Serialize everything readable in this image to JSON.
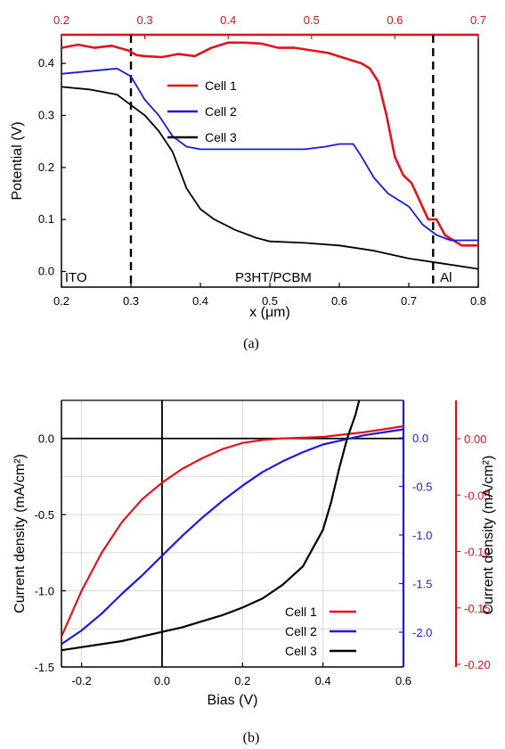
{
  "chart_data": [
    {
      "type": "line",
      "panel_label": "(a)",
      "xlabel": "x (μm)",
      "ylabel": "Potential (V)",
      "xlim": [
        0.2,
        0.8
      ],
      "ylim": [
        -0.03,
        0.455
      ],
      "x_ticks": [
        "0.2",
        "0.3",
        "0.4",
        "0.5",
        "0.6",
        "0.7",
        "0.8"
      ],
      "y_ticks": [
        "0.0",
        "0.1",
        "0.2",
        "0.3",
        "0.4"
      ],
      "top_axis": {
        "color": "#d8141b",
        "xlim": [
          0.2,
          0.7
        ],
        "ticks": [
          "0.2",
          "0.3",
          "0.4",
          "0.5",
          "0.6",
          "0.7"
        ]
      },
      "vlines": [
        0.3,
        0.735
      ],
      "regions": [
        {
          "label": "ITO",
          "x": 0.205
        },
        {
          "label": "P3HT/PCBM",
          "x": 0.45
        },
        {
          "label": "Al",
          "x": 0.745
        }
      ],
      "legend_position": "top-center",
      "series": [
        {
          "name": "Cell 1",
          "color": "#e0151b",
          "axis": "top",
          "points": [
            [
              0.2,
              0.43
            ],
            [
              0.22,
              0.436
            ],
            [
              0.24,
              0.43
            ],
            [
              0.26,
              0.434
            ],
            [
              0.28,
              0.425
            ],
            [
              0.29,
              0.416
            ],
            [
              0.3,
              0.414
            ],
            [
              0.32,
              0.412
            ],
            [
              0.34,
              0.418
            ],
            [
              0.36,
              0.414
            ],
            [
              0.38,
              0.43
            ],
            [
              0.4,
              0.44
            ],
            [
              0.42,
              0.44
            ],
            [
              0.44,
              0.438
            ],
            [
              0.46,
              0.43
            ],
            [
              0.48,
              0.43
            ],
            [
              0.5,
              0.425
            ],
            [
              0.52,
              0.42
            ],
            [
              0.54,
              0.41
            ],
            [
              0.56,
              0.4
            ],
            [
              0.57,
              0.39
            ],
            [
              0.58,
              0.365
            ],
            [
              0.59,
              0.3
            ],
            [
              0.6,
              0.22
            ],
            [
              0.61,
              0.185
            ],
            [
              0.62,
              0.17
            ],
            [
              0.63,
              0.135
            ],
            [
              0.64,
              0.1
            ],
            [
              0.65,
              0.1
            ],
            [
              0.66,
              0.07
            ],
            [
              0.67,
              0.06
            ],
            [
              0.68,
              0.05
            ],
            [
              0.69,
              0.05
            ],
            [
              0.7,
              0.05
            ]
          ]
        },
        {
          "name": "Cell 2",
          "color": "#1a1adc",
          "axis": "bottom",
          "points": [
            [
              0.2,
              0.38
            ],
            [
              0.24,
              0.385
            ],
            [
              0.28,
              0.39
            ],
            [
              0.3,
              0.375
            ],
            [
              0.32,
              0.33
            ],
            [
              0.34,
              0.3
            ],
            [
              0.36,
              0.26
            ],
            [
              0.38,
              0.24
            ],
            [
              0.4,
              0.235
            ],
            [
              0.45,
              0.235
            ],
            [
              0.5,
              0.235
            ],
            [
              0.55,
              0.235
            ],
            [
              0.58,
              0.24
            ],
            [
              0.6,
              0.245
            ],
            [
              0.62,
              0.245
            ],
            [
              0.63,
              0.225
            ],
            [
              0.65,
              0.18
            ],
            [
              0.67,
              0.15
            ],
            [
              0.7,
              0.125
            ],
            [
              0.72,
              0.09
            ],
            [
              0.74,
              0.07
            ],
            [
              0.76,
              0.06
            ],
            [
              0.78,
              0.06
            ],
            [
              0.8,
              0.06
            ]
          ]
        },
        {
          "name": "Cell 3",
          "color": "#000000",
          "axis": "bottom",
          "points": [
            [
              0.2,
              0.355
            ],
            [
              0.24,
              0.35
            ],
            [
              0.28,
              0.34
            ],
            [
              0.3,
              0.32
            ],
            [
              0.32,
              0.3
            ],
            [
              0.34,
              0.27
            ],
            [
              0.36,
              0.23
            ],
            [
              0.38,
              0.16
            ],
            [
              0.4,
              0.12
            ],
            [
              0.42,
              0.1
            ],
            [
              0.45,
              0.08
            ],
            [
              0.48,
              0.065
            ],
            [
              0.5,
              0.058
            ],
            [
              0.55,
              0.055
            ],
            [
              0.6,
              0.05
            ],
            [
              0.65,
              0.04
            ],
            [
              0.7,
              0.025
            ],
            [
              0.75,
              0.015
            ],
            [
              0.8,
              0.005
            ]
          ]
        }
      ]
    },
    {
      "type": "line",
      "panel_label": "(b)",
      "xlabel": "Bias (V)",
      "ylabel": "Current density (mA/cm²)",
      "ylabel_right": "Current density (mA/cm²)",
      "xlim": [
        -0.25,
        0.6
      ],
      "ylim": [
        -1.5,
        0.25
      ],
      "x_ticks": [
        "-0.2",
        "0.0",
        "0.2",
        "0.4",
        "0.6"
      ],
      "y_ticks": [
        "-1.5",
        "-1.0",
        "-0.5",
        "0.0"
      ],
      "right_axis_blue": {
        "color": "#1a1adc",
        "ticks": [
          "-2.0",
          "-1.5",
          "-1.0",
          "-0.5",
          "0.0"
        ]
      },
      "right_axis_red": {
        "color": "#d8141b",
        "ticks": [
          "-0.20",
          "-0.15",
          "-0.10",
          "-0.05",
          "0.00"
        ]
      },
      "grid": true,
      "legend_position": "bottom-right",
      "series": [
        {
          "name": "Cell 1",
          "color": "#e0151b",
          "points": [
            [
              -0.25,
              -1.3
            ],
            [
              -0.2,
              -1.0
            ],
            [
              -0.15,
              -0.75
            ],
            [
              -0.1,
              -0.55
            ],
            [
              -0.05,
              -0.4
            ],
            [
              0.0,
              -0.29
            ],
            [
              0.05,
              -0.2
            ],
            [
              0.1,
              -0.13
            ],
            [
              0.15,
              -0.07
            ],
            [
              0.2,
              -0.03
            ],
            [
              0.25,
              -0.01
            ],
            [
              0.3,
              0.0
            ],
            [
              0.35,
              0.005
            ],
            [
              0.4,
              0.01
            ],
            [
              0.45,
              0.025
            ],
            [
              0.5,
              0.04
            ],
            [
              0.55,
              0.06
            ],
            [
              0.6,
              0.08
            ]
          ]
        },
        {
          "name": "Cell 2",
          "color": "#1a1adc",
          "points": [
            [
              -0.25,
              -1.35
            ],
            [
              -0.2,
              -1.26
            ],
            [
              -0.15,
              -1.15
            ],
            [
              -0.1,
              -1.02
            ],
            [
              -0.05,
              -0.9
            ],
            [
              0.0,
              -0.77
            ],
            [
              0.05,
              -0.64
            ],
            [
              0.1,
              -0.52
            ],
            [
              0.15,
              -0.41
            ],
            [
              0.2,
              -0.31
            ],
            [
              0.25,
              -0.22
            ],
            [
              0.3,
              -0.15
            ],
            [
              0.35,
              -0.09
            ],
            [
              0.4,
              -0.04
            ],
            [
              0.45,
              -0.01
            ],
            [
              0.5,
              0.02
            ],
            [
              0.55,
              0.04
            ],
            [
              0.6,
              0.06
            ]
          ]
        },
        {
          "name": "Cell 3",
          "color": "#000000",
          "points": [
            [
              -0.25,
              -1.39
            ],
            [
              -0.2,
              -1.37
            ],
            [
              -0.15,
              -1.35
            ],
            [
              -0.1,
              -1.33
            ],
            [
              -0.05,
              -1.3
            ],
            [
              0.0,
              -1.27
            ],
            [
              0.05,
              -1.24
            ],
            [
              0.1,
              -1.2
            ],
            [
              0.15,
              -1.16
            ],
            [
              0.2,
              -1.11
            ],
            [
              0.25,
              -1.05
            ],
            [
              0.3,
              -0.96
            ],
            [
              0.35,
              -0.84
            ],
            [
              0.4,
              -0.6
            ],
            [
              0.42,
              -0.42
            ],
            [
              0.44,
              -0.2
            ],
            [
              0.46,
              0.0
            ],
            [
              0.48,
              0.15
            ],
            [
              0.49,
              0.25
            ]
          ]
        }
      ]
    }
  ]
}
